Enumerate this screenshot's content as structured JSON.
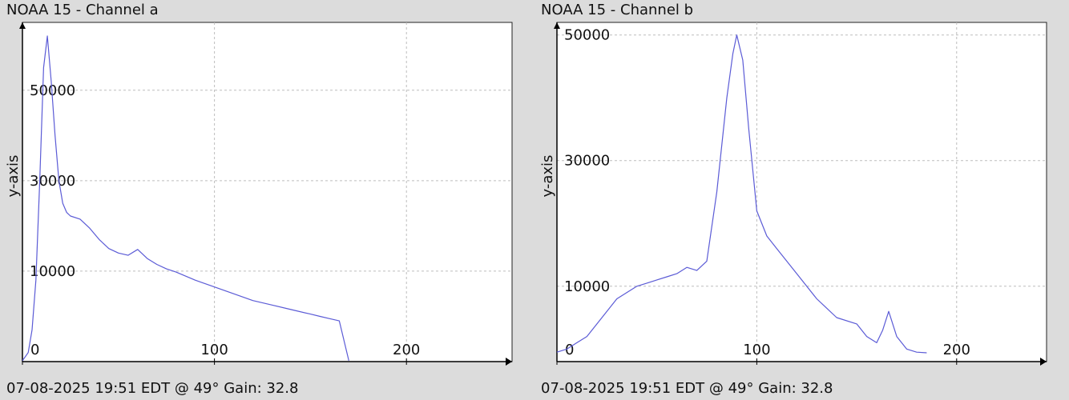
{
  "charts": [
    {
      "title": "NOAA 15 - Channel a",
      "footer": "07-08-2025 19:51 EDT @ 49° Gain: 32.8"
    },
    {
      "title": "NOAA 15 - Channel b",
      "footer": "07-08-2025 19:51 EDT @ 49° Gain: 32.8"
    }
  ],
  "colors": {
    "line": "#5b5bd6",
    "plot_background": "#ffffff",
    "page_background": "#dcdcdc",
    "grid": "#bdbdbd"
  },
  "chart_data": [
    {
      "type": "line",
      "title": "NOAA 15 - Channel a",
      "ylabel": "y-axis",
      "xlim": [
        0,
        255
      ],
      "ylim": [
        -10000,
        65000
      ],
      "xticks": [
        0,
        100,
        200
      ],
      "yticks": [
        10000,
        30000,
        50000
      ],
      "xgrid": [
        100,
        200
      ],
      "ygrid": [
        10000,
        30000,
        50000
      ],
      "grid": true,
      "x": [
        0,
        3,
        5,
        7,
        9,
        11,
        13,
        15,
        17,
        19,
        21,
        23,
        25,
        30,
        35,
        40,
        45,
        50,
        55,
        60,
        65,
        70,
        75,
        80,
        90,
        100,
        110,
        120,
        130,
        140,
        150,
        155,
        160,
        165,
        170
      ],
      "y": [
        -9800,
        -8000,
        -3000,
        8000,
        30000,
        55000,
        62000,
        52000,
        40000,
        30000,
        25000,
        23000,
        22200,
        21500,
        19500,
        17000,
        15000,
        14000,
        13500,
        14800,
        12800,
        11500,
        10500,
        9800,
        8000,
        6500,
        5000,
        3500,
        2500,
        1500,
        500,
        0,
        -500,
        -1000,
        -9800
      ]
    },
    {
      "type": "line",
      "title": "NOAA 15 - Channel b",
      "ylabel": "y-axis",
      "xlim": [
        0,
        245
      ],
      "ylim": [
        -2000,
        52000
      ],
      "xticks": [
        0,
        100,
        200
      ],
      "yticks": [
        10000,
        30000,
        50000
      ],
      "xgrid": [
        100,
        200
      ],
      "ygrid": [
        10000,
        30000,
        50000
      ],
      "grid": true,
      "x": [
        0,
        5,
        10,
        15,
        20,
        25,
        30,
        35,
        40,
        45,
        50,
        55,
        60,
        65,
        70,
        75,
        80,
        85,
        88,
        90,
        93,
        96,
        100,
        105,
        110,
        120,
        130,
        140,
        150,
        155,
        160,
        163,
        166,
        170,
        175,
        180,
        185
      ],
      "y": [
        -500,
        0,
        1000,
        2000,
        4000,
        6000,
        8000,
        9000,
        10000,
        10500,
        11000,
        11500,
        12000,
        13000,
        12500,
        14000,
        25000,
        40000,
        47000,
        50000,
        46000,
        35000,
        22000,
        18000,
        16000,
        12000,
        8000,
        5000,
        4000,
        2000,
        1000,
        3000,
        6000,
        2000,
        0,
        -500,
        -600
      ]
    }
  ]
}
